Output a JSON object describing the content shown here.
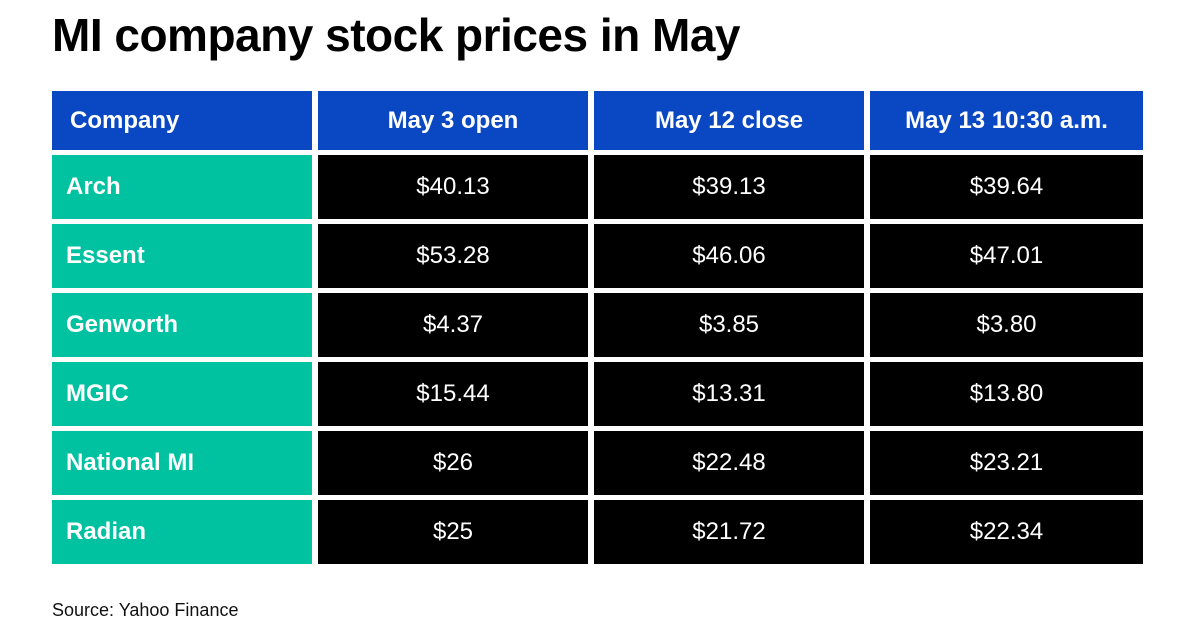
{
  "title": "MI company stock prices in May",
  "table": {
    "header": [
      "Company",
      "May 3 open",
      "May 12 close",
      "May 13 10:30 a.m."
    ],
    "rows": [
      [
        "Arch",
        "$40.13",
        "$39.13",
        "$39.64"
      ],
      [
        "Essent",
        "$53.28",
        "$46.06",
        "$47.01"
      ],
      [
        "Genworth",
        "$4.37",
        "$3.85",
        "$3.80"
      ],
      [
        "MGIC",
        "$15.44",
        "$13.31",
        "$13.80"
      ],
      [
        "National MI",
        "$26",
        "$22.48",
        "$23.21"
      ],
      [
        "Radian",
        "$25",
        "$21.72",
        "$22.34"
      ]
    ]
  },
  "source": "Source: Yahoo Finance"
}
